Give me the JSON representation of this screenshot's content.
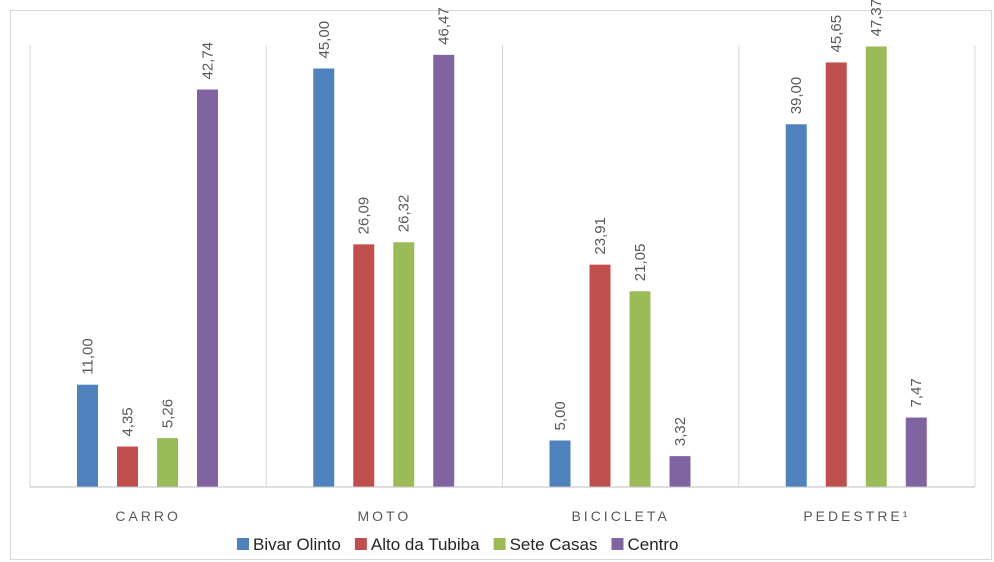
{
  "chart_data": {
    "type": "bar",
    "title": "",
    "xlabel": "",
    "ylabel": "",
    "categories": [
      "CARRO",
      "MOTO",
      "BICICLETA",
      "PEDESTRE¹"
    ],
    "series": [
      {
        "name": "Bivar Olinto",
        "color": "#4f81bd",
        "values": [
          11.0,
          45.0,
          5.0,
          39.0
        ],
        "labels": [
          "11,00",
          "45,00",
          "5,00",
          "39,00"
        ]
      },
      {
        "name": "Alto da Tubiba",
        "color": "#c0504d",
        "values": [
          4.35,
          26.09,
          23.91,
          45.65
        ],
        "labels": [
          "4,35",
          "26,09",
          "23,91",
          "45,65"
        ]
      },
      {
        "name": "Sete Casas",
        "color": "#9bbb59",
        "values": [
          5.26,
          26.32,
          21.05,
          47.37
        ],
        "labels": [
          "5,26",
          "26,32",
          "21,05",
          "47,37"
        ]
      },
      {
        "name": "Centro",
        "color": "#8064a2",
        "values": [
          42.74,
          46.47,
          3.32,
          7.47
        ],
        "labels": [
          "42,74",
          "46,47",
          "3,32",
          "7,47"
        ]
      }
    ],
    "ylim": [
      0,
      50
    ],
    "grid": false,
    "legend_position": "bottom"
  }
}
